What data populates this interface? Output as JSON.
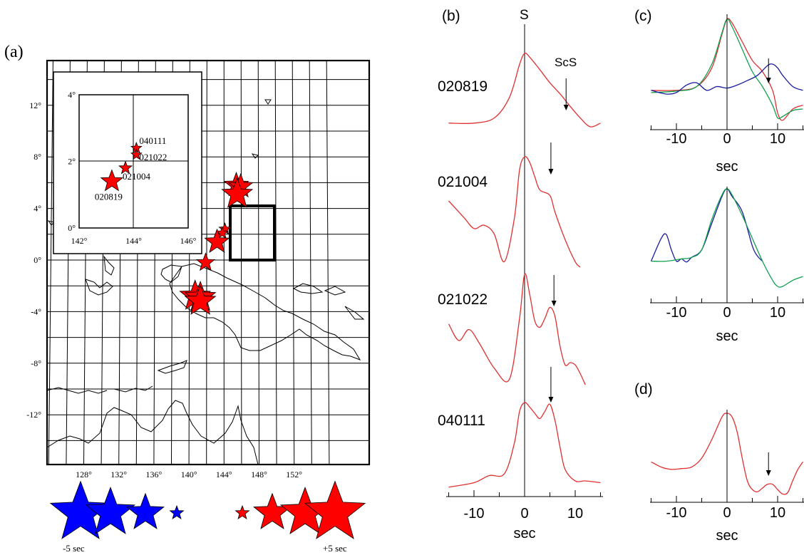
{
  "panels": {
    "a": {
      "label": "(a)",
      "lat_labels": [
        "12°",
        "8°",
        "4°",
        "0°",
        "-4°",
        "-8°",
        "-12°"
      ],
      "lon_labels": [
        "128°",
        "132°",
        "136°",
        "140°",
        "144°",
        "148°",
        "152°"
      ],
      "inset": {
        "lat_labels": [
          "4°",
          "2°",
          "0°"
        ],
        "lon_labels": [
          "142°",
          "144°",
          "146°"
        ],
        "events": [
          {
            "name": "040111",
            "lon": 144.1,
            "lat": 2.4
          },
          {
            "name": "021022",
            "lon": 144.1,
            "lat": 2.2
          },
          {
            "name": "021004",
            "lon": 143.7,
            "lat": 1.8
          },
          {
            "name": "020819",
            "lon": 143.2,
            "lat": 1.4
          }
        ]
      },
      "box": {
        "lon": [
          142,
          146
        ],
        "lat": [
          0,
          4
        ]
      },
      "stars": [
        {
          "lon": 145.4,
          "lat": 5.8,
          "dt": 3
        },
        {
          "lon": 145.9,
          "lat": 5.7,
          "dt": 3
        },
        {
          "lon": 145.5,
          "lat": 5.1,
          "dt": 4
        },
        {
          "lon": 144.1,
          "lat": 2.4,
          "dt": 1
        },
        {
          "lon": 143.8,
          "lat": 2.1,
          "dt": 1
        },
        {
          "lon": 143.2,
          "lat": 1.4,
          "dt": 3
        },
        {
          "lon": 141.9,
          "lat": -0.2,
          "dt": 2
        },
        {
          "lon": 140.7,
          "lat": -2.8,
          "dt": 4
        },
        {
          "lon": 141.3,
          "lat": -2.9,
          "dt": 4
        },
        {
          "lon": 141.3,
          "lat": -3.2,
          "dt": 4
        }
      ],
      "legend": {
        "left": "-5 sec",
        "right": "+5 sec",
        "dt_values": [
          -5,
          -4,
          -3,
          -1,
          1,
          3,
          4,
          5
        ],
        "neg_color": "#0000ff",
        "pos_color": "#ff0000"
      }
    },
    "b": {
      "label": "(b)",
      "s_label": "S",
      "scs_label": "ScS",
      "xlabel": "sec",
      "ticks": [
        "-10",
        "0",
        "10"
      ],
      "events": [
        "020819",
        "021004",
        "021022",
        "040111"
      ],
      "scs_arrow_sec": [
        8.2,
        5.2,
        5.8,
        5.2
      ]
    },
    "c": {
      "label": "(c)",
      "xlabel": "sec",
      "ticks": [
        "-10",
        "0",
        "10"
      ],
      "arrow_sec": 8.2,
      "colors": {
        "red": "#e03030",
        "green": "#10a050",
        "blue": "#1a1aa0"
      }
    },
    "d": {
      "label": "(d)",
      "xlabel": "sec",
      "ticks": [
        "-10",
        "0",
        "10"
      ],
      "arrow_sec": 8.2
    }
  },
  "chart_data": [
    {
      "type": "line",
      "title": "(b)",
      "xlabel": "sec",
      "ylabel": "",
      "xlim": [
        -15,
        15
      ],
      "series": [
        {
          "name": "020819",
          "x": [
            -15,
            -10,
            -6,
            -3,
            -1,
            0,
            1,
            3,
            5,
            7,
            9,
            11,
            13,
            15
          ],
          "y": [
            0.05,
            0.05,
            0.12,
            0.4,
            0.85,
            1.0,
            0.95,
            0.78,
            0.6,
            0.45,
            0.28,
            0.12,
            0.0,
            0.05
          ]
        },
        {
          "name": "021004",
          "x": [
            -15,
            -12,
            -10,
            -8,
            -6,
            -4,
            -2,
            -1,
            0,
            1,
            2,
            3,
            5,
            6,
            8,
            10,
            11
          ],
          "y": [
            0.6,
            0.45,
            0.35,
            0.38,
            0.3,
            0.05,
            0.45,
            0.88,
            1.0,
            0.95,
            0.82,
            0.7,
            0.65,
            0.5,
            0.25,
            0.05,
            0.0
          ]
        },
        {
          "name": "021022",
          "x": [
            -15,
            -13,
            -11,
            -9,
            -6,
            -3,
            -1,
            0,
            1,
            2,
            3,
            4,
            5,
            6,
            7,
            8,
            9,
            10,
            11,
            12
          ],
          "y": [
            0.55,
            0.4,
            0.5,
            0.38,
            0.15,
            0.05,
            0.6,
            1.0,
            0.82,
            0.58,
            0.52,
            0.6,
            0.7,
            0.62,
            0.35,
            0.18,
            0.2,
            0.18,
            0.1,
            0.0
          ]
        },
        {
          "name": "040111",
          "x": [
            -15,
            -10,
            -7,
            -4,
            -2,
            -1,
            0,
            1,
            2,
            3,
            4,
            5,
            6,
            7,
            8,
            10,
            12,
            15
          ],
          "y": [
            0.05,
            0.1,
            0.18,
            0.2,
            0.55,
            0.9,
            1.0,
            0.95,
            0.88,
            0.82,
            0.9,
            0.98,
            0.8,
            0.5,
            0.25,
            0.12,
            0.12,
            0.1
          ]
        }
      ]
    },
    {
      "type": "line",
      "title": "(c)",
      "xlabel": "sec",
      "ylabel": "",
      "xlim": [
        -15,
        15
      ],
      "series": [
        {
          "x": [
            -15,
            -10,
            -6,
            -3,
            -1,
            0,
            1,
            3,
            5,
            7,
            9,
            10,
            11,
            13,
            15
          ],
          "y": [
            0.05,
            0.05,
            0.1,
            0.35,
            0.8,
            1.0,
            0.95,
            0.7,
            0.45,
            0.3,
            0.05,
            -0.25,
            -0.35,
            -0.2,
            -0.15
          ]
        },
        {
          "x": [
            -15,
            -10,
            -6,
            -3,
            -1,
            0,
            1,
            3,
            5,
            7,
            9,
            10,
            11,
            13,
            15
          ],
          "y": [
            0.02,
            0.04,
            0.1,
            0.4,
            0.82,
            1.0,
            0.9,
            0.6,
            0.3,
            0.1,
            -0.15,
            -0.32,
            -0.3,
            -0.22,
            -0.2
          ]
        },
        {
          "x": [
            -15,
            -12,
            -10,
            -8,
            -6,
            -4,
            -2,
            0,
            2,
            4,
            6,
            8,
            9,
            10,
            11,
            13,
            15
          ],
          "y": [
            0.05,
            0.0,
            0.02,
            0.12,
            0.15,
            0.05,
            0.1,
            0.08,
            0.12,
            0.18,
            0.25,
            0.38,
            0.4,
            0.35,
            0.25,
            0.1,
            0.05
          ]
        }
      ]
    },
    {
      "type": "line",
      "title": "(c)",
      "xlabel": "sec",
      "ylabel": "",
      "xlim": [
        -15,
        15
      ],
      "series": [
        {
          "x": [
            -15,
            -13,
            -12,
            -11,
            -10,
            -9,
            -8,
            -7,
            -5,
            -3,
            -1,
            0,
            1,
            3,
            5,
            6,
            7
          ],
          "y": [
            0.05,
            0.35,
            0.4,
            0.2,
            0.05,
            0.08,
            0.04,
            0.1,
            0.2,
            0.55,
            0.9,
            1.0,
            0.9,
            0.7,
            0.25,
            0.12,
            0.05
          ]
        },
        {
          "x": [
            -15,
            -12,
            -9,
            -7,
            -5,
            -3,
            -1,
            0,
            1,
            3,
            5,
            7,
            9,
            10,
            11,
            13,
            15
          ],
          "y": [
            0.05,
            0.05,
            0.08,
            0.1,
            0.2,
            0.6,
            0.92,
            1.0,
            0.92,
            0.65,
            0.35,
            0.05,
            -0.2,
            -0.28,
            -0.28,
            -0.2,
            -0.15
          ]
        }
      ]
    },
    {
      "type": "line",
      "title": "(d)",
      "xlabel": "sec",
      "ylabel": "",
      "xlim": [
        -15,
        15
      ],
      "series": [
        {
          "x": [
            -15,
            -13,
            -11,
            -9,
            -7,
            -5,
            -3,
            -1,
            0,
            1,
            2,
            3,
            4,
            5,
            6,
            7,
            8,
            9,
            10,
            11,
            12,
            13,
            14,
            15
          ],
          "y": [
            0.35,
            0.28,
            0.25,
            0.26,
            0.28,
            0.4,
            0.65,
            0.95,
            1.0,
            0.95,
            0.75,
            0.4,
            0.1,
            -0.02,
            -0.05,
            0.0,
            0.05,
            0.05,
            -0.02,
            -0.08,
            -0.06,
            0.1,
            0.25,
            0.35
          ]
        }
      ]
    }
  ]
}
